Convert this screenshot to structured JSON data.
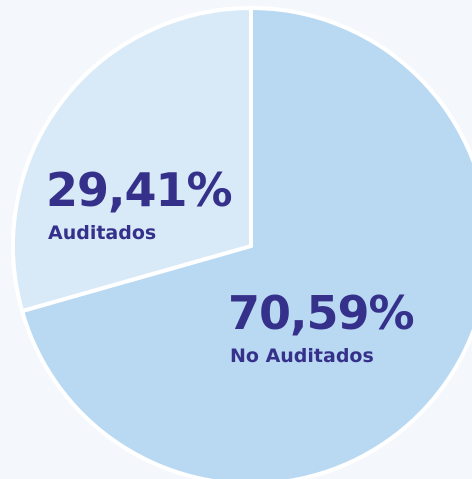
{
  "chart_data": {
    "type": "pie",
    "categories": [
      "No Auditados",
      "Auditados"
    ],
    "values": [
      70.59,
      29.41
    ],
    "value_labels": [
      "70,59%",
      "29,41%"
    ],
    "colors": [
      "#b9d8f2",
      "#d8e9f8"
    ]
  }
}
